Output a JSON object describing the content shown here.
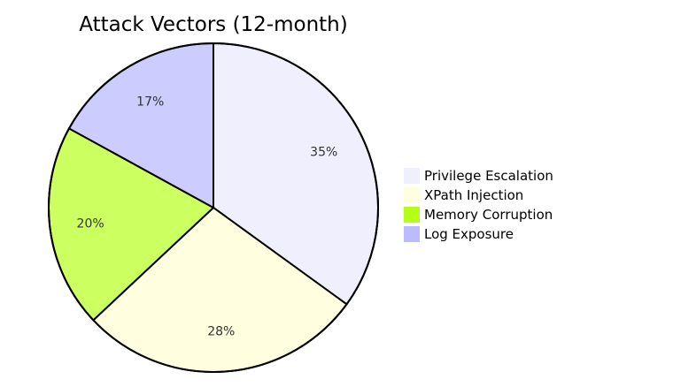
{
  "chart_data": {
    "type": "pie",
    "title": "Attack Vectors (12-month)",
    "slices": [
      {
        "label": "Privilege Escalation",
        "value": 35,
        "display": "35%",
        "color": "#EFEFFD"
      },
      {
        "label": "XPath Injection",
        "value": 28,
        "display": "28%",
        "color": "#FFFFE0"
      },
      {
        "label": "Memory Corruption",
        "value": 20,
        "display": "20%",
        "color": "#CCFF60"
      },
      {
        "label": "Log Exposure",
        "value": 17,
        "display": "17%",
        "color": "#CCCCFF"
      }
    ],
    "legend_swatch_colors": [
      "#EFEFFD",
      "#FFFFE0",
      "#B3FF1A",
      "#BBBBFF"
    ],
    "start_angle": "top",
    "direction": "clockwise",
    "legend_position": "right"
  }
}
